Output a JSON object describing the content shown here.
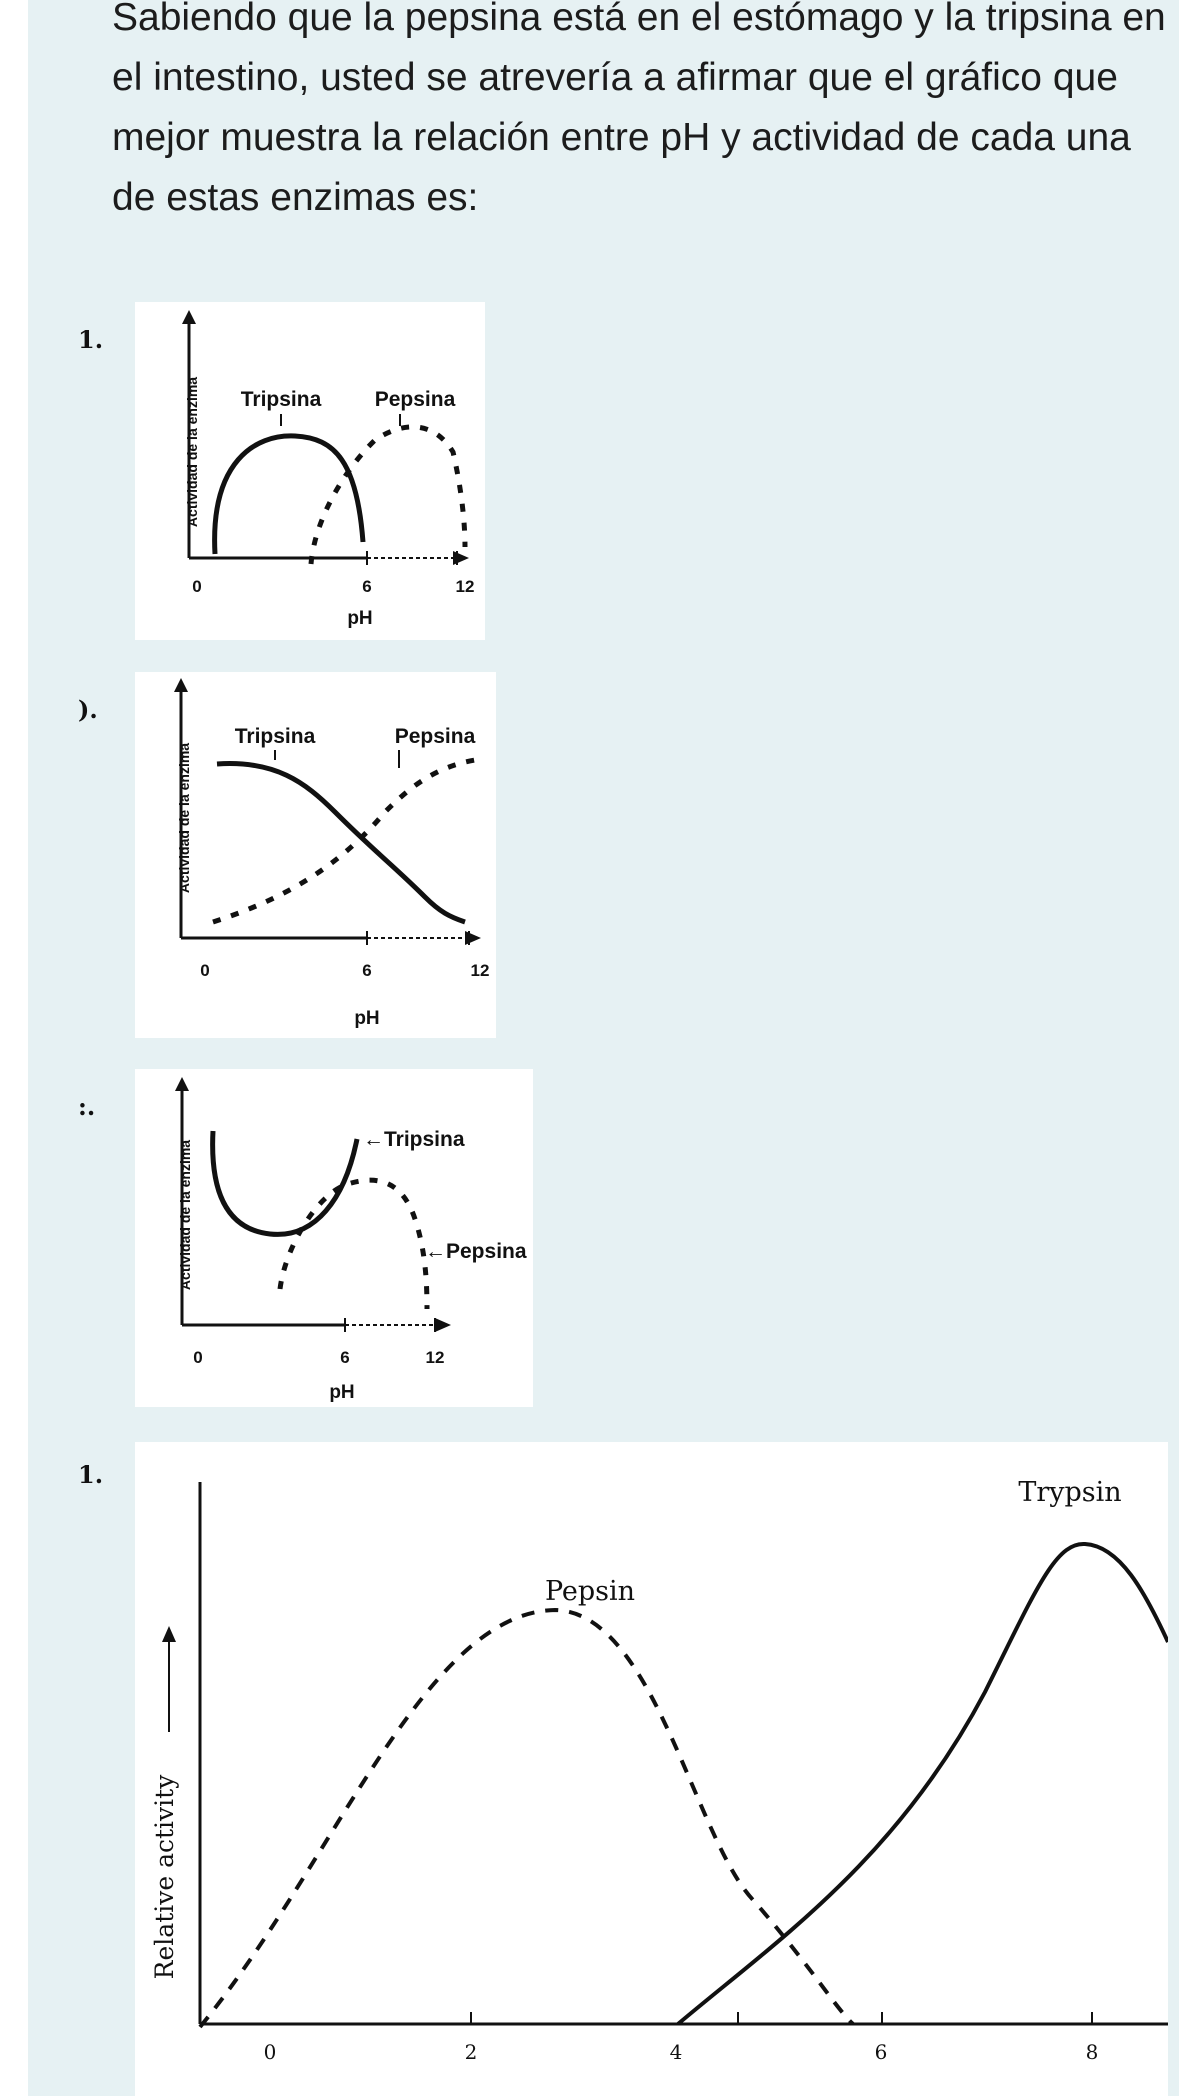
{
  "question": "Sabiendo que la pepsina está en el estómago y la tripsina en el intestino, usted se atrevería a afirmar que el gráfico que mejor muestra la relación entre pH y actividad de cada una de estas enzimas es:",
  "options": [
    {
      "label": "1.",
      "ylabel": "Actividad de la enzima",
      "xlabel": "pH",
      "ticks": [
        "0",
        "6",
        "12"
      ],
      "series": [
        "Tripsina",
        "Pepsina"
      ]
    },
    {
      "label": ").",
      "ylabel": "Actividad de la enzima",
      "xlabel": "pH",
      "ticks": [
        "0",
        "6",
        "12"
      ],
      "series": [
        "Tripsina",
        "Pepsina"
      ]
    },
    {
      "label": ":.",
      "ylabel": "Actividad de la enzima",
      "xlabel": "pH",
      "ticks": [
        "0",
        "6",
        "12"
      ],
      "series": [
        "←Tripsina",
        "←Pepsina"
      ]
    },
    {
      "label": "1.",
      "ylabel": "Relative activity",
      "xlabel": "",
      "ticks": [
        "0",
        "2",
        "4",
        "6",
        "8"
      ],
      "series": [
        "Trypsin",
        "Pepsin"
      ]
    }
  ]
}
